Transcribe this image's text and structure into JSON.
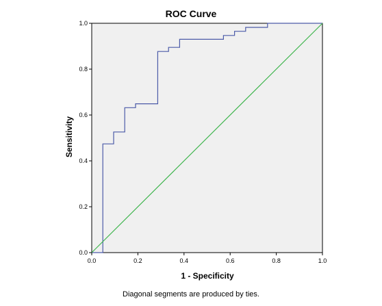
{
  "chart_data": {
    "type": "line",
    "title": "ROC Curve",
    "xlabel": "1 - Specificity",
    "ylabel": "Sensitivity",
    "footnote": "Diagonal segments are produced by ties.",
    "xlim": [
      0.0,
      1.0
    ],
    "ylim": [
      0.0,
      1.0
    ],
    "xticks": [
      "0.0",
      "0.2",
      "0.4",
      "0.6",
      "0.8",
      "1.0"
    ],
    "yticks": [
      "0.0",
      "0.2",
      "0.4",
      "0.6",
      "0.8",
      "1.0"
    ],
    "grid": false,
    "plot_background": "#f0f0f0",
    "series": [
      {
        "color": "#4b5aa8",
        "x": [
          0.0,
          0.048,
          0.048,
          0.095,
          0.095,
          0.143,
          0.143,
          0.19,
          0.19,
          0.286,
          0.286,
          0.333,
          0.333,
          0.381,
          0.381,
          0.571,
          0.571,
          0.619,
          0.619,
          0.667,
          0.667,
          0.762,
          0.762,
          1.0
        ],
        "y": [
          0.0,
          0.0,
          0.474,
          0.474,
          0.526,
          0.526,
          0.632,
          0.632,
          0.649,
          0.649,
          0.877,
          0.877,
          0.895,
          0.895,
          0.93,
          0.93,
          0.947,
          0.947,
          0.965,
          0.965,
          0.982,
          0.982,
          1.0,
          1.0
        ]
      },
      {
        "color": "#3cb44b",
        "x": [
          0.0,
          1.0
        ],
        "y": [
          0.0,
          1.0
        ]
      }
    ]
  }
}
